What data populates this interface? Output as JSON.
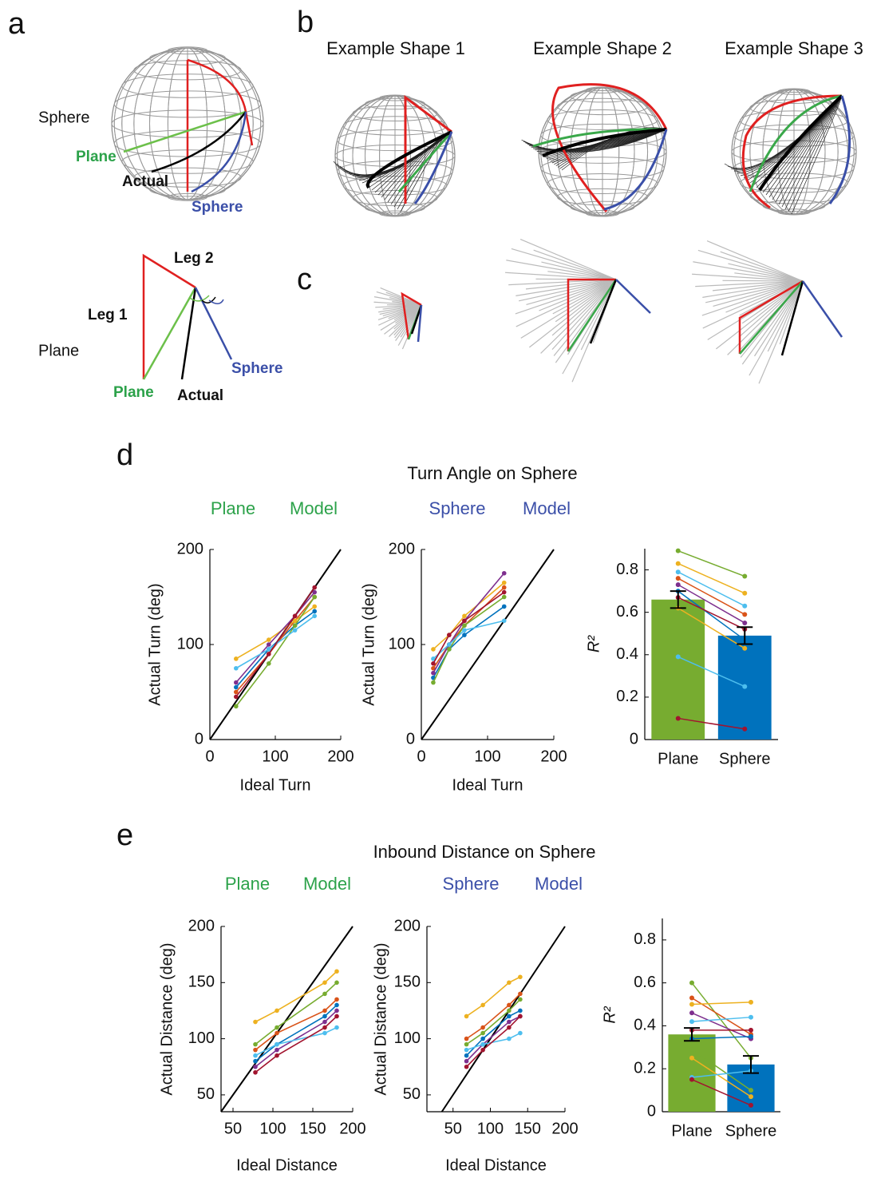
{
  "panel_labels": [
    "a",
    "b",
    "c",
    "d",
    "e"
  ],
  "panel_a": {
    "sphere_label": "Sphere",
    "sphere_plane": "Plane",
    "sphere_actual": "Actual",
    "sphere_sphere": "Sphere",
    "plane_label": "Plane",
    "leg1": "Leg 1",
    "leg2": "Leg 2",
    "plane_plane": "Plane",
    "plane_actual": "Actual",
    "plane_sphere": "Sphere"
  },
  "panel_b": {
    "titles": [
      "Example Shape 1",
      "Example Shape 2",
      "Example Shape 3"
    ]
  },
  "panel_d": {
    "title": "Turn Angle on Sphere",
    "plane_model": [
      "Plane",
      "Model"
    ],
    "sphere_model": [
      "Sphere",
      "Model"
    ]
  },
  "panel_e": {
    "title": "Inbound Distance on Sphere",
    "plane_model": [
      "Plane",
      "Model"
    ],
    "sphere_model": [
      "Sphere",
      "Model"
    ]
  },
  "chart_data": [
    {
      "type": "line",
      "xlabel": "Ideal Turn",
      "ylabel": "Actual Turn (deg)",
      "xlim": [
        0,
        200
      ],
      "ylim": [
        0,
        200
      ],
      "xticks": [
        0,
        100,
        200
      ],
      "yticks": [
        0,
        100,
        200
      ],
      "identity_line": true,
      "x": [
        40,
        90,
        130,
        160
      ],
      "series": [
        {
          "color": "#0072BD",
          "values": [
            55,
            95,
            120,
            135
          ]
        },
        {
          "color": "#D95319",
          "values": [
            50,
            90,
            125,
            150
          ]
        },
        {
          "color": "#EDB120",
          "values": [
            85,
            105,
            125,
            140
          ]
        },
        {
          "color": "#7E2F8E",
          "values": [
            60,
            100,
            130,
            155
          ]
        },
        {
          "color": "#77AC30",
          "values": [
            35,
            80,
            120,
            150
          ]
        },
        {
          "color": "#4DBEEE",
          "values": [
            75,
            95,
            115,
            130
          ]
        },
        {
          "color": "#A2142F",
          "values": [
            45,
            90,
            130,
            160
          ]
        }
      ]
    },
    {
      "type": "line",
      "xlabel": "Ideal Turn",
      "ylabel": "Actual Turn (deg)",
      "xlim": [
        0,
        200
      ],
      "ylim": [
        0,
        200
      ],
      "xticks": [
        0,
        100,
        200
      ],
      "yticks": [
        0,
        100,
        200
      ],
      "identity_line": true,
      "x": [
        18,
        42,
        65,
        125
      ],
      "series": [
        {
          "color": "#0072BD",
          "values": [
            65,
            95,
            110,
            140
          ]
        },
        {
          "color": "#D95319",
          "values": [
            75,
            100,
            120,
            160
          ]
        },
        {
          "color": "#EDB120",
          "values": [
            95,
            110,
            130,
            165
          ]
        },
        {
          "color": "#7E2F8E",
          "values": [
            70,
            100,
            125,
            175
          ]
        },
        {
          "color": "#77AC30",
          "values": [
            60,
            95,
            120,
            150
          ]
        },
        {
          "color": "#4DBEEE",
          "values": [
            85,
            100,
            115,
            125
          ]
        },
        {
          "color": "#A2142F",
          "values": [
            80,
            110,
            125,
            155
          ]
        }
      ]
    },
    {
      "type": "bar",
      "ylabel": "R²",
      "categories": [
        "Plane",
        "Sphere"
      ],
      "values": [
        0.66,
        0.49
      ],
      "errors": [
        0.04,
        0.04
      ],
      "colors": [
        "#77AC30",
        "#0072BD"
      ],
      "ylim": [
        0,
        0.9
      ],
      "yticks": [
        0,
        0.2,
        0.4,
        0.6,
        0.8
      ],
      "paired": [
        {
          "color": "#77AC30",
          "values": [
            0.89,
            0.77
          ]
        },
        {
          "color": "#EDB120",
          "values": [
            0.83,
            0.69
          ]
        },
        {
          "color": "#4DBEEE",
          "values": [
            0.79,
            0.63
          ]
        },
        {
          "color": "#D95319",
          "values": [
            0.76,
            0.59
          ]
        },
        {
          "color": "#7E2F8E",
          "values": [
            0.73,
            0.55
          ]
        },
        {
          "color": "#0072BD",
          "values": [
            0.7,
            0.47
          ]
        },
        {
          "color": "#A2142F",
          "values": [
            0.67,
            0.52
          ]
        },
        {
          "color": "#EDB120",
          "values": [
            0.62,
            0.43
          ]
        },
        {
          "color": "#4DBEEE",
          "values": [
            0.39,
            0.25
          ]
        },
        {
          "color": "#A2142F",
          "values": [
            0.1,
            0.05
          ]
        }
      ]
    },
    {
      "type": "line",
      "xlabel": "Ideal Distance",
      "ylabel": "Actual Distance (deg)",
      "xlim": [
        35,
        200
      ],
      "ylim": [
        35,
        200
      ],
      "xticks": [
        50,
        100,
        150,
        200
      ],
      "yticks": [
        50,
        100,
        150,
        200
      ],
      "identity_line": true,
      "x": [
        78,
        105,
        165,
        180
      ],
      "series": [
        {
          "color": "#0072BD",
          "values": [
            80,
            95,
            120,
            130
          ]
        },
        {
          "color": "#D95319",
          "values": [
            90,
            105,
            125,
            135
          ]
        },
        {
          "color": "#EDB120",
          "values": [
            115,
            125,
            150,
            160
          ]
        },
        {
          "color": "#7E2F8E",
          "values": [
            75,
            90,
            115,
            125
          ]
        },
        {
          "color": "#77AC30",
          "values": [
            95,
            110,
            140,
            150
          ]
        },
        {
          "color": "#4DBEEE",
          "values": [
            85,
            95,
            105,
            110
          ]
        },
        {
          "color": "#A2142F",
          "values": [
            70,
            85,
            110,
            120
          ]
        }
      ]
    },
    {
      "type": "line",
      "xlabel": "Ideal Distance",
      "ylabel": "Actual Distance (deg)",
      "xlim": [
        15,
        200
      ],
      "ylim": [
        35,
        200
      ],
      "xticks": [
        50,
        100,
        150,
        200
      ],
      "yticks": [
        50,
        100,
        150,
        200
      ],
      "identity_line": true,
      "x": [
        68,
        90,
        125,
        140
      ],
      "series": [
        {
          "color": "#0072BD",
          "values": [
            85,
            100,
            120,
            125
          ]
        },
        {
          "color": "#D95319",
          "values": [
            100,
            110,
            130,
            140
          ]
        },
        {
          "color": "#EDB120",
          "values": [
            120,
            130,
            150,
            155
          ]
        },
        {
          "color": "#7E2F8E",
          "values": [
            80,
            95,
            115,
            120
          ]
        },
        {
          "color": "#77AC30",
          "values": [
            95,
            105,
            125,
            135
          ]
        },
        {
          "color": "#4DBEEE",
          "values": [
            90,
            95,
            100,
            105
          ]
        },
        {
          "color": "#A2142F",
          "values": [
            75,
            90,
            110,
            120
          ]
        }
      ]
    },
    {
      "type": "bar",
      "ylabel": "R²",
      "categories": [
        "Plane",
        "Sphere"
      ],
      "values": [
        0.36,
        0.22
      ],
      "errors": [
        0.03,
        0.04
      ],
      "colors": [
        "#77AC30",
        "#0072BD"
      ],
      "ylim": [
        0,
        0.9
      ],
      "yticks": [
        0,
        0.2,
        0.4,
        0.6,
        0.8
      ],
      "paired": [
        {
          "color": "#77AC30",
          "values": [
            0.6,
            0.25
          ]
        },
        {
          "color": "#D95319",
          "values": [
            0.53,
            0.36
          ]
        },
        {
          "color": "#EDB120",
          "values": [
            0.5,
            0.51
          ]
        },
        {
          "color": "#7E2F8E",
          "values": [
            0.46,
            0.34
          ]
        },
        {
          "color": "#4DBEEE",
          "values": [
            0.42,
            0.44
          ]
        },
        {
          "color": "#A2142F",
          "values": [
            0.38,
            0.38
          ]
        },
        {
          "color": "#0072BD",
          "values": [
            0.34,
            0.35
          ]
        },
        {
          "color": "#77AC30",
          "values": [
            0.29,
            0.1
          ]
        },
        {
          "color": "#EDB120",
          "values": [
            0.25,
            0.07
          ]
        },
        {
          "color": "#4DBEEE",
          "values": [
            0.16,
            0.19
          ]
        },
        {
          "color": "#A2142F",
          "values": [
            0.15,
            0.03
          ]
        }
      ]
    }
  ]
}
